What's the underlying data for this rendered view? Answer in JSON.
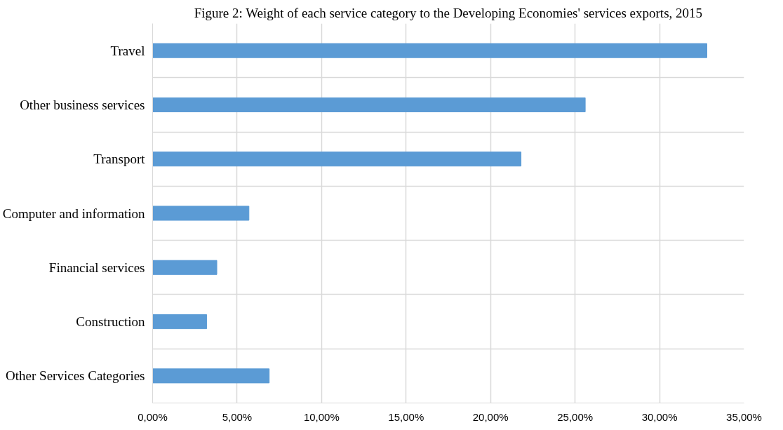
{
  "chart_data": {
    "type": "bar",
    "orientation": "horizontal",
    "title": "Figure 2: Weight of each service category to the Developing Economies' services exports, 2015",
    "categories": [
      "Travel",
      "Other business services",
      "Transport",
      "Computer and information",
      "Financial services",
      "Construction",
      "Other Services Categories"
    ],
    "values": [
      32.8,
      25.6,
      21.8,
      5.7,
      3.8,
      3.2,
      6.9
    ],
    "color": "#5b9bd5",
    "xlim": [
      0,
      35
    ],
    "xticks": [
      {
        "value": 0,
        "label": "0,00%"
      },
      {
        "value": 5,
        "label": "5,00%"
      },
      {
        "value": 10,
        "label": "10,00%"
      },
      {
        "value": 15,
        "label": "15,00%"
      },
      {
        "value": 20,
        "label": "20,00%"
      },
      {
        "value": 25,
        "label": "25,00%"
      },
      {
        "value": 30,
        "label": "30,00%"
      },
      {
        "value": 35,
        "label": "35,00%"
      }
    ],
    "grid": true
  }
}
